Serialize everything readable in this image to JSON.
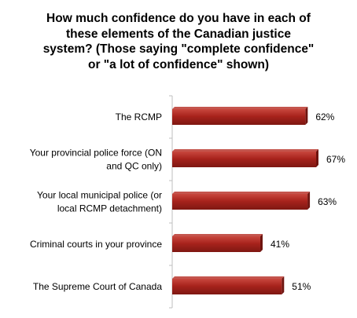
{
  "chart_data": {
    "type": "bar",
    "orientation": "horizontal",
    "title_lines": [
      "How much confidence do you have in each of",
      "these elements of the Canadian justice",
      "system? (Those saying \"complete confidence\"",
      "or \"a lot of confidence\" shown)"
    ],
    "categories": [
      [
        "The RCMP"
      ],
      [
        "Your provincial police force (ON",
        "and QC only)"
      ],
      [
        "Your local municipal police (or",
        "local RCMP detachment)"
      ],
      [
        "Criminal courts in your province"
      ],
      [
        "The Supreme Court of Canada"
      ]
    ],
    "values": [
      62,
      67,
      63,
      41,
      51
    ],
    "value_labels": [
      "62%",
      "67%",
      "63%",
      "41%",
      "51%"
    ],
    "xlim": [
      0,
      67
    ],
    "bar_color": "#a8231c",
    "axis_color": "#bfbfbf",
    "grid": false,
    "legend": false
  }
}
